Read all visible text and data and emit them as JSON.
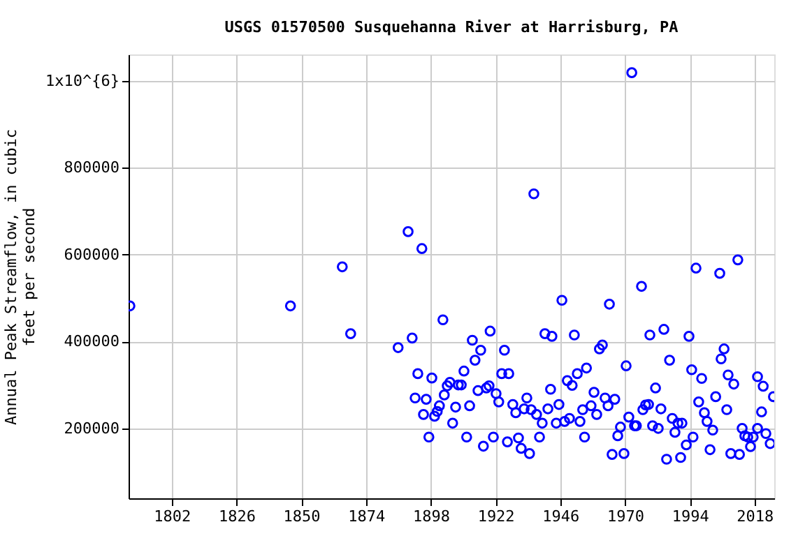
{
  "chart_data": {
    "type": "scatter",
    "title": "USGS 01570500 Susquehanna River at Harrisburg, PA",
    "ylabel": "Annual Peak Streamflow, in cubic feet per second",
    "series": [
      {
        "color": "#0000ff",
        "x": [
          1786.5,
          1846,
          1865.2,
          1868.3,
          1885.9,
          1889.6,
          1891.1,
          1892.2,
          1893.2,
          1894.7,
          1895.3,
          1896.3,
          1897.3,
          1898.4,
          1899.4,
          1900.4,
          1901.2,
          1902.5,
          1903,
          1904.1,
          1905.1,
          1906.1,
          1907.2,
          1908.2,
          1909.3,
          1910.3,
          1911.3,
          1912.4,
          1913.4,
          1914.4,
          1915.5,
          1916.5,
          1917.5,
          1918.6,
          1919.6,
          1920,
          1921.2,
          1922.2,
          1923.2,
          1924.3,
          1925.3,
          1926.4,
          1926.9,
          1928.4,
          1929.5,
          1930.5,
          1931.5,
          1932.6,
          1933.6,
          1934.6,
          1935.2,
          1936.2,
          1937.2,
          1938.3,
          1939.3,
          1940.3,
          1941.4,
          1942.4,
          1942.9,
          1944.5,
          1945.5,
          1946.6,
          1947.6,
          1948.6,
          1949.4,
          1950.4,
          1951.2,
          1952.3,
          1953.3,
          1954.3,
          1955,
          1955.7,
          1957.4,
          1958.5,
          1959.5,
          1960.5,
          1961.6,
          1962.6,
          1963.7,
          1964.2,
          1965.2,
          1966.2,
          1967.3,
          1968.3,
          1969.6,
          1970.4,
          1971.4,
          1972.5,
          1973.5,
          1974.2,
          1976.1,
          1976.6,
          1977.6,
          1978.7,
          1979.2,
          1980.2,
          1981.3,
          1982.3,
          1983.3,
          1984.4,
          1985.4,
          1986.5,
          1987.5,
          1988.5,
          1989.6,
          1990.6,
          1991.1,
          1992.7,
          1993.7,
          1994.7,
          1995.2,
          1996.3,
          1997.3,
          1998.4,
          1999.4,
          2000.4,
          2001.5,
          2002.5,
          2003.6,
          2005.1,
          2005.6,
          2006.7,
          2007.7,
          2008.2,
          2009.2,
          2010.3,
          2011.8,
          2012.4,
          2013.4,
          2014.4,
          2015.5,
          2016.5,
          2017.5,
          2019.1,
          2019.1,
          2020.6,
          2021.2,
          2022.2,
          2023.8,
          2025
        ],
        "values": [
          482000,
          482000,
          572000,
          418000,
          386000,
          653000,
          408000,
          270000,
          326000,
          614000,
          232000,
          267000,
          180000,
          316000,
          228000,
          239000,
          252000,
          450000,
          277000,
          298000,
          306000,
          212000,
          249000,
          300000,
          300000,
          332000,
          180000,
          252000,
          403000,
          357000,
          287000,
          380000,
          159000,
          293000,
          298000,
          424000,
          180000,
          280000,
          261000,
          326000,
          380000,
          169000,
          326000,
          255000,
          236000,
          178000,
          154000,
          245000,
          270000,
          142000,
          243000,
          740000,
          232000,
          180000,
          212000,
          418000,
          245000,
          290000,
          412000,
          212000,
          255000,
          495000,
          216000,
          310000,
          223000,
          299000,
          415000,
          326000,
          216000,
          243000,
          180000,
          339000,
          252000,
          283000,
          232000,
          383000,
          392000,
          270000,
          252000,
          486000,
          140000,
          267000,
          183000,
          203000,
          142000,
          344000,
          226000,
          1019000,
          206000,
          206000,
          527000,
          243000,
          254000,
          255000,
          415000,
          206000,
          293000,
          200000,
          245000,
          428000,
          129000,
          357000,
          223000,
          191000,
          212000,
          133000,
          212000,
          162000,
          412000,
          335000,
          180000,
          569000,
          261000,
          315000,
          236000,
          216000,
          151000,
          196000,
          273000,
          557000,
          360000,
          383000,
          243000,
          323000,
          142000,
          302000,
          588000,
          140000,
          200000,
          183000,
          180000,
          158000,
          180000,
          319000,
          200000,
          238000,
          297000,
          188000,
          165000,
          273000
        ]
      }
    ],
    "xlim": [
      1786,
      2025.3
    ],
    "xticks": [
      1802,
      1826,
      1850,
      1874,
      1898,
      1922,
      1946,
      1970,
      1994,
      2018
    ],
    "ylim": [
      39000,
      1061000
    ],
    "yticks": [
      200000,
      400000,
      600000,
      800000,
      {
        "value": 1000000,
        "label": "1x10^{6}"
      }
    ],
    "grid": true,
    "marker": "circle"
  }
}
